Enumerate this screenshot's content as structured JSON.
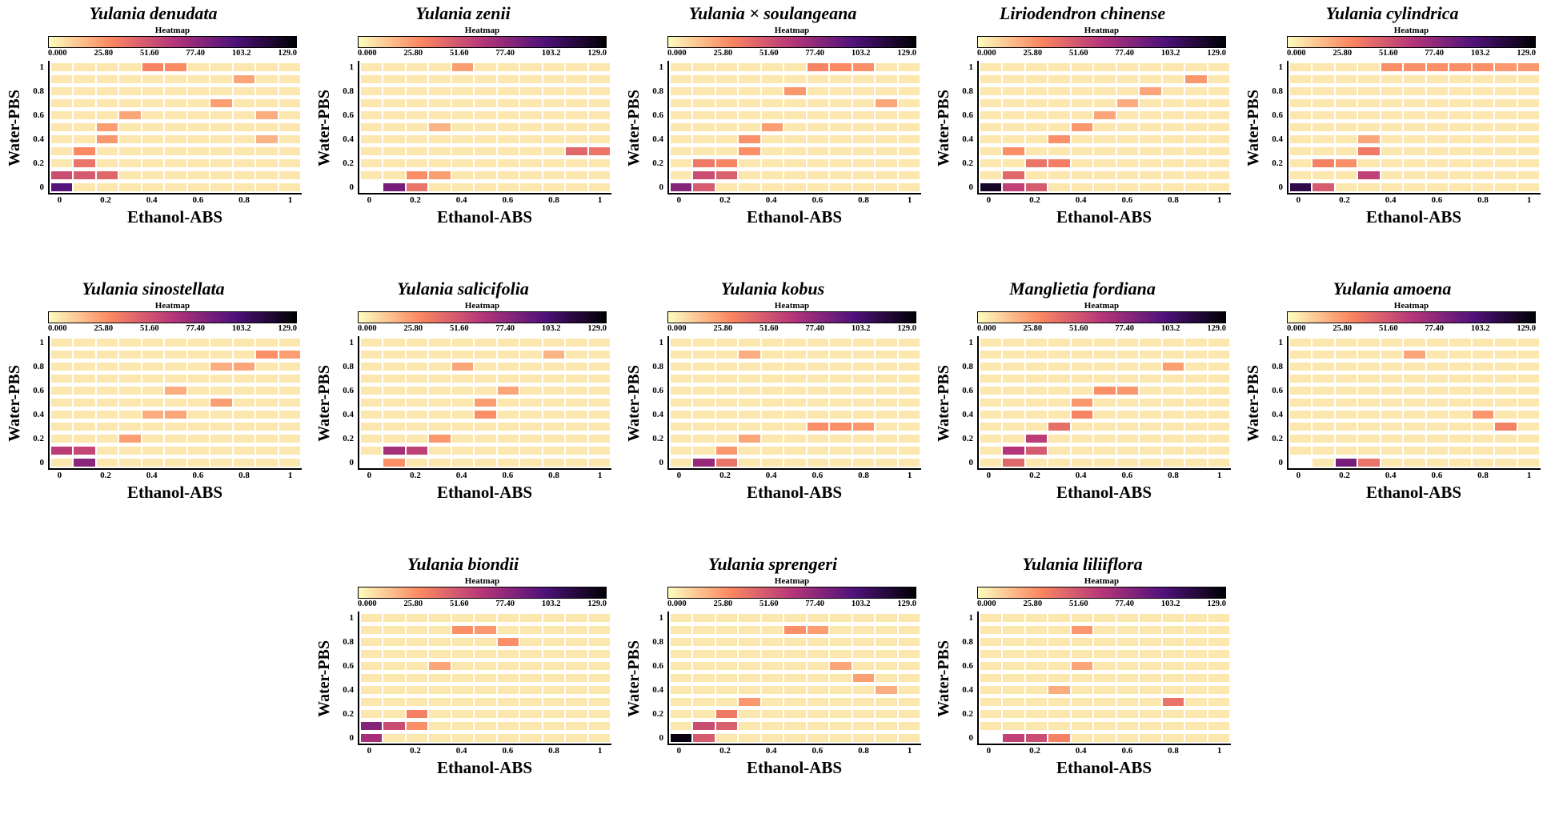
{
  "chart_data": {
    "type": "heatmap",
    "shared": {
      "xlabel": "Ethanol-ABS",
      "ylabel": "Water-PBS",
      "x_ticks": [
        "0",
        "0.2",
        "0.4",
        "0.6",
        "0.8",
        "1"
      ],
      "y_ticks": [
        "1",
        "0.8",
        "0.6",
        "0.4",
        "0.2",
        "0"
      ],
      "colorbar_title": "Heatmap",
      "colorbar_ticks": [
        "0.000",
        "25.80",
        "51.60",
        "77.40",
        "103.2",
        "129.0"
      ],
      "vmin": 0,
      "vmax": 129,
      "grid_step": 0.1,
      "background_value": 6,
      "colormap_name": "magma_reversed",
      "colormap_stops": [
        [
          0,
          "#fcfdbf"
        ],
        [
          0.25,
          "#fb8861"
        ],
        [
          0.5,
          "#b63679"
        ],
        [
          0.75,
          "#50127b"
        ],
        [
          1,
          "#000004"
        ]
      ]
    },
    "panels": [
      {
        "title": "Yulania denudata",
        "cells": [
          [
            0,
            0,
            95
          ],
          [
            0,
            0.1,
            55
          ],
          [
            0.1,
            0.1,
            50
          ],
          [
            0.2,
            0.1,
            45
          ],
          [
            0.1,
            0.2,
            40
          ],
          [
            0.1,
            0.3,
            32
          ],
          [
            0.2,
            0.4,
            28
          ],
          [
            0.9,
            0.4,
            20
          ],
          [
            0.2,
            0.5,
            26
          ],
          [
            0.3,
            0.6,
            24
          ],
          [
            0.9,
            0.6,
            22
          ],
          [
            0.7,
            0.7,
            26
          ],
          [
            0.8,
            0.9,
            24
          ],
          [
            0.4,
            1,
            34
          ],
          [
            0.5,
            1,
            32
          ]
        ]
      },
      {
        "title": "Yulania zenii",
        "cells": [
          [
            0,
            0,
            0
          ],
          [
            0.1,
            0,
            85
          ],
          [
            0.2,
            0,
            40
          ],
          [
            0.2,
            0.1,
            30
          ],
          [
            0.3,
            0.1,
            26
          ],
          [
            0.9,
            0.3,
            45
          ],
          [
            1,
            0.3,
            40
          ],
          [
            0.3,
            0.5,
            20
          ],
          [
            0.4,
            1,
            26
          ]
        ]
      },
      {
        "title": "Yulania × soulangeana",
        "cells": [
          [
            0,
            0,
            80
          ],
          [
            0.1,
            0,
            50
          ],
          [
            0.1,
            0.1,
            55
          ],
          [
            0.2,
            0.1,
            48
          ],
          [
            0.1,
            0.2,
            38
          ],
          [
            0.2,
            0.2,
            34
          ],
          [
            0.3,
            0.3,
            30
          ],
          [
            0.3,
            0.4,
            30
          ],
          [
            0.4,
            0.5,
            26
          ],
          [
            0.5,
            0.8,
            28
          ],
          [
            0.6,
            1,
            34
          ],
          [
            0.7,
            1,
            32
          ],
          [
            0.8,
            1,
            30
          ],
          [
            0.9,
            0.7,
            24
          ]
        ]
      },
      {
        "title": "Liriodendron chinense",
        "cells": [
          [
            0,
            0,
            120
          ],
          [
            0.1,
            0,
            60
          ],
          [
            0.2,
            0,
            50
          ],
          [
            0.1,
            0.1,
            45
          ],
          [
            0.2,
            0.2,
            40
          ],
          [
            0.3,
            0.2,
            36
          ],
          [
            0.1,
            0.3,
            30
          ],
          [
            0.3,
            0.4,
            30
          ],
          [
            0.4,
            0.5,
            28
          ],
          [
            0.5,
            0.6,
            24
          ],
          [
            0.6,
            0.7,
            22
          ],
          [
            0.7,
            0.8,
            24
          ],
          [
            0.9,
            0.9,
            28
          ]
        ]
      },
      {
        "title": "Yulania cylindrica",
        "cells": [
          [
            0,
            0,
            110
          ],
          [
            0.1,
            0,
            50
          ],
          [
            0.3,
            0.1,
            60
          ],
          [
            0.1,
            0.2,
            35
          ],
          [
            0.2,
            0.2,
            30
          ],
          [
            0.3,
            0.3,
            38
          ],
          [
            0.3,
            0.4,
            24
          ],
          [
            0.4,
            1,
            30
          ],
          [
            0.5,
            1,
            30
          ],
          [
            0.6,
            1,
            30
          ],
          [
            0.7,
            1,
            30
          ],
          [
            0.8,
            1,
            30
          ],
          [
            0.9,
            1,
            28
          ],
          [
            1,
            1,
            28
          ]
        ]
      },
      {
        "title": "Yulania sinostellata",
        "cells": [
          [
            0.1,
            0,
            78
          ],
          [
            0,
            0.1,
            62
          ],
          [
            0.1,
            0.1,
            58
          ],
          [
            0.3,
            0.2,
            26
          ],
          [
            0.4,
            0.4,
            22
          ],
          [
            0.5,
            0.4,
            24
          ],
          [
            0.7,
            0.5,
            26
          ],
          [
            0.5,
            0.6,
            22
          ],
          [
            0.7,
            0.8,
            22
          ],
          [
            0.8,
            0.8,
            24
          ],
          [
            0.9,
            0.9,
            30
          ],
          [
            1,
            0.9,
            26
          ]
        ]
      },
      {
        "title": "Yulania salicifolia",
        "cells": [
          [
            0,
            0,
            0
          ],
          [
            0.1,
            0,
            30
          ],
          [
            0.1,
            0.1,
            70
          ],
          [
            0.2,
            0.1,
            60
          ],
          [
            0.3,
            0.2,
            28
          ],
          [
            0.5,
            0.4,
            30
          ],
          [
            0.5,
            0.5,
            26
          ],
          [
            0.6,
            0.6,
            24
          ],
          [
            0.4,
            0.8,
            24
          ],
          [
            0.8,
            0.9,
            20
          ]
        ]
      },
      {
        "title": "Yulania kobus",
        "cells": [
          [
            0.1,
            0,
            75
          ],
          [
            0.2,
            0,
            40
          ],
          [
            0.2,
            0.1,
            28
          ],
          [
            0.3,
            0.2,
            24
          ],
          [
            0.6,
            0.3,
            30
          ],
          [
            0.7,
            0.3,
            30
          ],
          [
            0.8,
            0.3,
            28
          ],
          [
            0.3,
            0.9,
            22
          ]
        ]
      },
      {
        "title": "Manglietia fordiana",
        "cells": [
          [
            0.1,
            0,
            45
          ],
          [
            0.1,
            0.1,
            65
          ],
          [
            0.2,
            0.1,
            50
          ],
          [
            0.2,
            0.2,
            62
          ],
          [
            0.3,
            0.3,
            42
          ],
          [
            0.4,
            0.4,
            34
          ],
          [
            0.4,
            0.5,
            28
          ],
          [
            0.5,
            0.6,
            30
          ],
          [
            0.6,
            0.6,
            28
          ],
          [
            0.8,
            0.8,
            26
          ]
        ]
      },
      {
        "title": "Yulania amoena",
        "cells": [
          [
            0,
            0,
            0
          ],
          [
            0.2,
            0,
            85
          ],
          [
            0.3,
            0,
            40
          ],
          [
            0.9,
            0.3,
            35
          ],
          [
            0.8,
            0.4,
            28
          ],
          [
            0.5,
            0.9,
            24
          ]
        ]
      },
      {
        "title": "Yulania biondii",
        "cells": [
          [
            0,
            0,
            70
          ],
          [
            0,
            0.1,
            80
          ],
          [
            0.1,
            0.1,
            55
          ],
          [
            0.2,
            0.1,
            30
          ],
          [
            0.2,
            0.2,
            35
          ],
          [
            0.3,
            0.6,
            24
          ],
          [
            0.6,
            0.8,
            30
          ],
          [
            0.4,
            0.9,
            30
          ],
          [
            0.5,
            0.9,
            28
          ]
        ]
      },
      {
        "title": "Yulania sprengeri",
        "cells": [
          [
            0,
            0,
            125
          ],
          [
            0.1,
            0,
            50
          ],
          [
            0.1,
            0.1,
            55
          ],
          [
            0.2,
            0.1,
            48
          ],
          [
            0.2,
            0.2,
            38
          ],
          [
            0.3,
            0.3,
            28
          ],
          [
            0.9,
            0.4,
            22
          ],
          [
            0.8,
            0.5,
            26
          ],
          [
            0.7,
            0.6,
            24
          ],
          [
            0.5,
            0.9,
            30
          ],
          [
            0.6,
            0.9,
            26
          ]
        ]
      },
      {
        "title": "Yulania liliiflora",
        "cells": [
          [
            0,
            0,
            0
          ],
          [
            0.1,
            0,
            60
          ],
          [
            0.2,
            0,
            55
          ],
          [
            0.3,
            0,
            35
          ],
          [
            0.3,
            0.4,
            22
          ],
          [
            0.8,
            0.3,
            40
          ],
          [
            0.4,
            0.6,
            24
          ],
          [
            0.4,
            0.9,
            28
          ]
        ]
      }
    ]
  }
}
